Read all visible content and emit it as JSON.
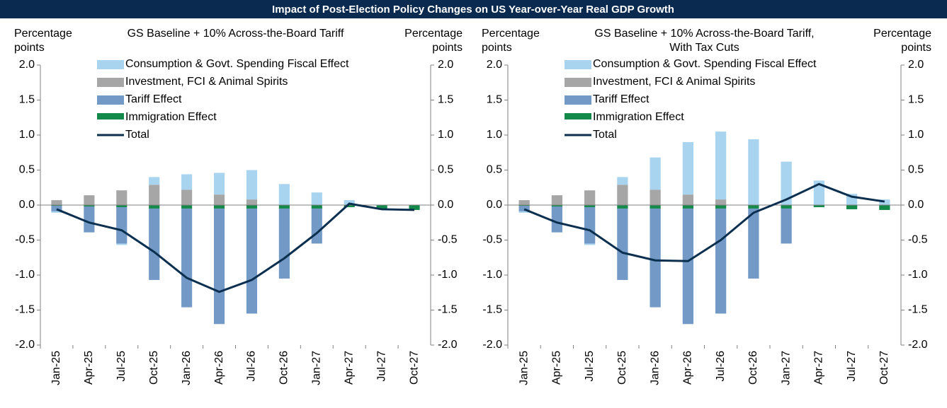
{
  "title": "Impact of Post-Election Policy Changes on US Year-over-Year Real GDP Growth",
  "chart_data": [
    {
      "type": "bar",
      "title": [
        "GS Baseline + 10% Across-the-Board Tariff"
      ],
      "ylabel": [
        "Percentage",
        "points"
      ],
      "y2label": [
        "Percentage",
        "points"
      ],
      "categories": [
        "Jan-25",
        "Apr-25",
        "Jul-25",
        "Oct-25",
        "Jan-26",
        "Apr-26",
        "Jul-26",
        "Oct-26",
        "Jan-27",
        "Apr-27",
        "Jul-27",
        "Oct-27"
      ],
      "ylim": [
        -2,
        2
      ],
      "yticks": [
        {
          "value": 2,
          "label": "2.0"
        },
        1.5,
        {
          "value": 1,
          "label": "1.0"
        },
        0.5,
        {
          "value": 0,
          "label": "0.0"
        },
        -0.5,
        {
          "value": -1,
          "label": "-1.0"
        },
        -1.5,
        {
          "value": -2,
          "label": "-2.0"
        }
      ],
      "y2lim": [
        -2,
        2
      ],
      "y2ticks": [
        {
          "value": 2,
          "label": "2.0"
        },
        1.5,
        {
          "value": 1,
          "label": "1.0"
        },
        0.5,
        {
          "value": 0,
          "label": "0.0"
        },
        -0.5,
        {
          "value": -1,
          "label": "-1.0"
        },
        -1.5,
        {
          "value": -2,
          "label": "-2.0"
        }
      ],
      "stacked": true,
      "series": [
        {
          "name": "Consumption & Govt. Spending Fiscal Effect",
          "color": "#a9d4f0",
          "values": [
            -0.02,
            0,
            -0.02,
            0.11,
            0.22,
            0.31,
            0.42,
            0.3,
            0.18,
            0.07,
            0,
            0
          ]
        },
        {
          "name": "Investment, FCI & Animal Spirits",
          "color": "#a6a6a6",
          "values": [
            0.07,
            0.14,
            0.21,
            0.29,
            0.22,
            0.15,
            0.08,
            0,
            0,
            0,
            0,
            0
          ]
        },
        {
          "name": "Tariff Effect",
          "color": "#7399c6",
          "values": [
            -0.08,
            -0.37,
            -0.52,
            -1.02,
            -1.41,
            -1.65,
            -1.5,
            -1.0,
            -0.5,
            0,
            0,
            0
          ]
        },
        {
          "name": "Immigration Effect",
          "color": "#138a4a",
          "values": [
            -0.01,
            -0.02,
            -0.03,
            -0.05,
            -0.05,
            -0.05,
            -0.05,
            -0.05,
            -0.05,
            -0.03,
            -0.06,
            -0.07
          ]
        },
        {
          "name": "Total",
          "color": "#0b2f4f",
          "type": "line",
          "values": [
            -0.06,
            -0.25,
            -0.36,
            -0.67,
            -1.04,
            -1.24,
            -1.07,
            -0.76,
            -0.4,
            0.02,
            -0.06,
            -0.07
          ]
        }
      ]
    },
    {
      "type": "bar",
      "title": [
        "GS Baseline + 10% Across-the-Board Tariff,",
        "With Tax Cuts"
      ],
      "ylabel": [
        "Percentage",
        "points"
      ],
      "y2label": [
        "Percentage",
        "points"
      ],
      "categories": [
        "Jan-25",
        "Apr-25",
        "Jul-25",
        "Oct-25",
        "Jan-26",
        "Apr-26",
        "Jul-26",
        "Oct-26",
        "Jan-27",
        "Apr-27",
        "Jul-27",
        "Oct-27"
      ],
      "ylim": [
        -2,
        2
      ],
      "yticks": [
        {
          "value": 2,
          "label": "2.0"
        },
        1.5,
        {
          "value": 1,
          "label": "1.0"
        },
        0.5,
        {
          "value": 0,
          "label": "0.0"
        },
        -0.5,
        {
          "value": -1,
          "label": "-1.0"
        },
        -1.5,
        {
          "value": -2,
          "label": "-2.0"
        }
      ],
      "y2lim": [
        -2,
        2
      ],
      "y2ticks": [
        {
          "value": 2,
          "label": "2.0"
        },
        1.5,
        {
          "value": 1,
          "label": "1.0"
        },
        0.5,
        {
          "value": 0,
          "label": "0.0"
        },
        -0.5,
        {
          "value": -1,
          "label": "-1.0"
        },
        -1.5,
        {
          "value": -2,
          "label": "-2.0"
        }
      ],
      "stacked": true,
      "series": [
        {
          "name": "Consumption & Govt. Spending Fiscal Effect",
          "color": "#a9d4f0",
          "values": [
            -0.02,
            0,
            -0.02,
            0.11,
            0.46,
            0.75,
            0.97,
            0.94,
            0.62,
            0.35,
            0.16,
            0.08
          ]
        },
        {
          "name": "Investment, FCI & Animal Spirits",
          "color": "#a6a6a6",
          "values": [
            0.07,
            0.14,
            0.21,
            0.29,
            0.22,
            0.15,
            0.08,
            0,
            0,
            0,
            0,
            0
          ]
        },
        {
          "name": "Tariff Effect",
          "color": "#7399c6",
          "values": [
            -0.08,
            -0.37,
            -0.52,
            -1.02,
            -1.41,
            -1.65,
            -1.5,
            -1.0,
            -0.5,
            0,
            0,
            0
          ]
        },
        {
          "name": "Immigration Effect",
          "color": "#138a4a",
          "values": [
            -0.01,
            -0.02,
            -0.03,
            -0.05,
            -0.05,
            -0.05,
            -0.05,
            -0.05,
            -0.05,
            -0.03,
            -0.06,
            -0.07
          ]
        },
        {
          "name": "Total",
          "color": "#0b2f4f",
          "type": "line",
          "values": [
            -0.06,
            -0.25,
            -0.36,
            -0.68,
            -0.79,
            -0.8,
            -0.5,
            -0.11,
            0.08,
            0.3,
            0.12,
            0.05
          ]
        }
      ]
    }
  ]
}
